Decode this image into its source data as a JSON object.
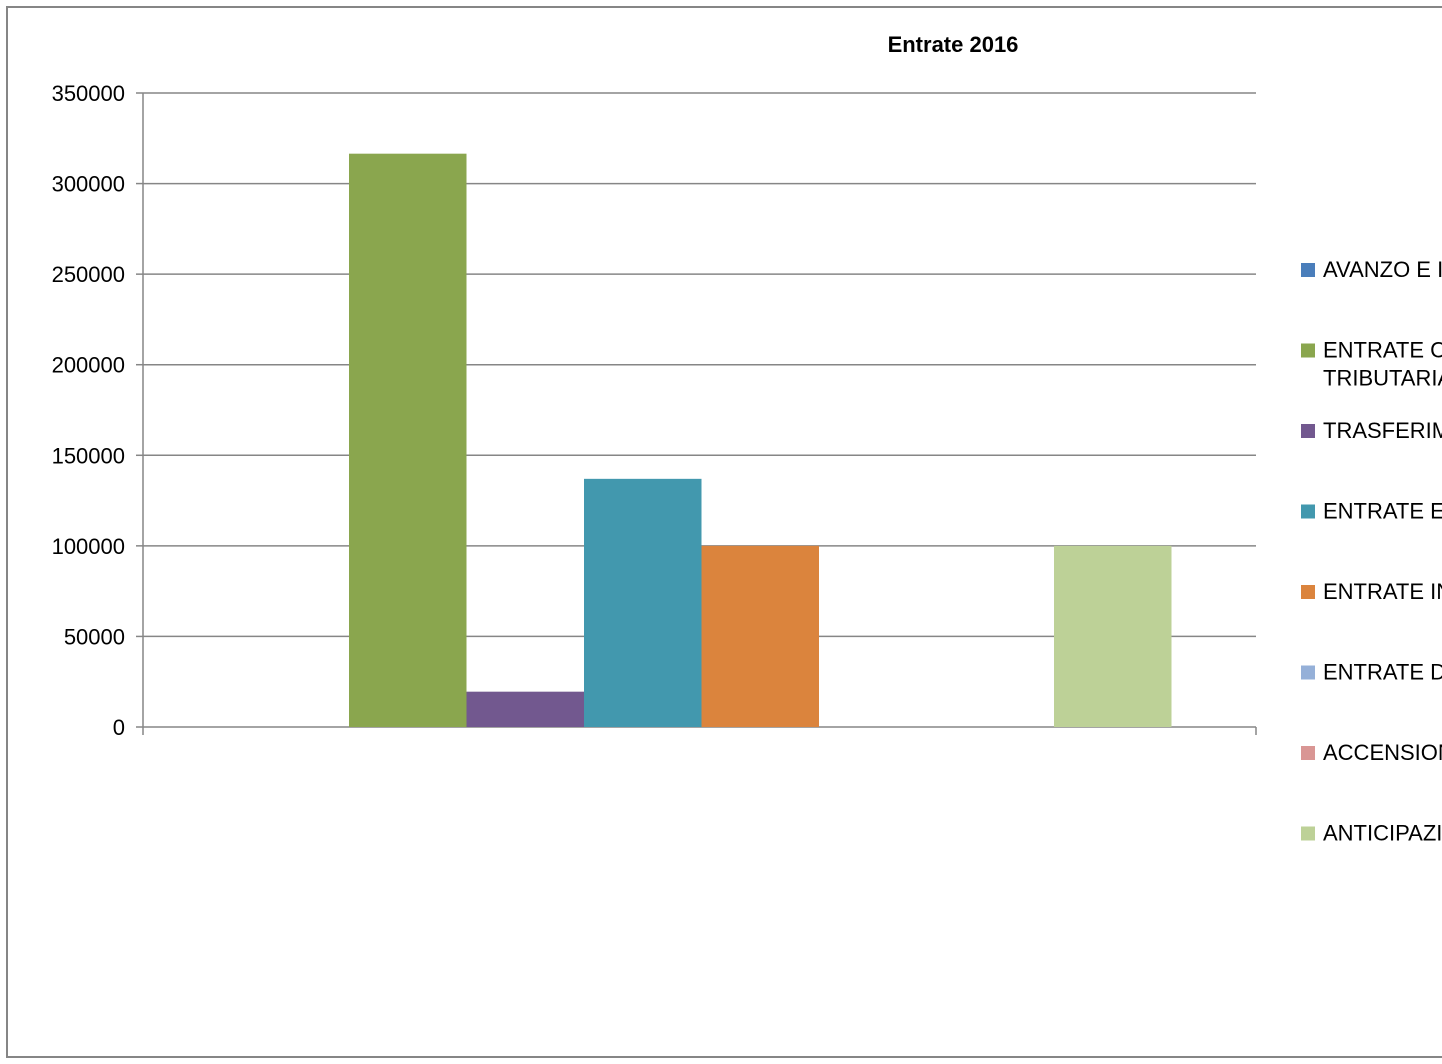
{
  "chart_data": {
    "type": "bar",
    "title": "Entrate 2016",
    "xlabel": "",
    "ylabel": "",
    "ylim": [
      0,
      350000
    ],
    "yticks": [
      0,
      50000,
      100000,
      150000,
      200000,
      250000,
      300000,
      350000
    ],
    "grid": true,
    "legend_position": "right",
    "series": [
      {
        "legend_lines": [
          "AVANZO E I"
        ],
        "value": 0,
        "color": "#4a7ebb"
      },
      {
        "legend_lines": [
          "ENTRATE C",
          "TRIBUTARIA"
        ],
        "value": 316500,
        "color": "#8aa64e"
      },
      {
        "legend_lines": [
          "TRASFERIM"
        ],
        "value": 19500,
        "color": "#72588f"
      },
      {
        "legend_lines": [
          "ENTRATE E"
        ],
        "value": 137000,
        "color": "#4298ae"
      },
      {
        "legend_lines": [
          "ENTRATE IN"
        ],
        "value": 100000,
        "color": "#db843d"
      },
      {
        "legend_lines": [
          "ENTRATE D"
        ],
        "value": 0,
        "color": "#95b0d8"
      },
      {
        "legend_lines": [
          "ACCENSION"
        ],
        "value": 0,
        "color": "#d99694"
      },
      {
        "legend_lines": [
          "ANTICIPAZI"
        ],
        "value": 100000,
        "color": "#bdd197"
      }
    ]
  }
}
